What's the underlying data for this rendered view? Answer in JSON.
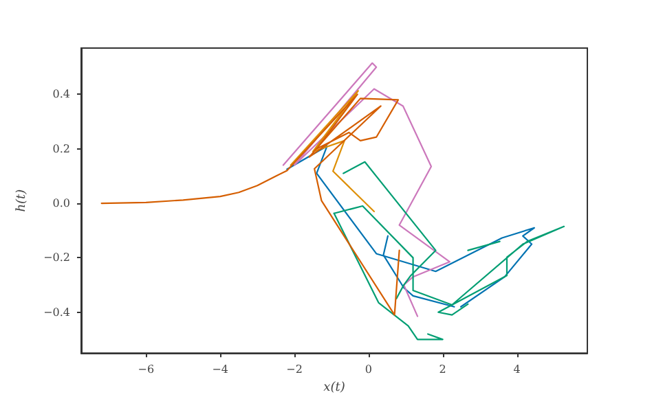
{
  "chart_data": {
    "type": "line",
    "xlabel": "x(t)",
    "ylabel": "h(t)",
    "xlim": [
      -7.75,
      5.9
    ],
    "ylim": [
      -0.55,
      0.57
    ],
    "xticks": [
      {
        "value": -6,
        "label": "−6"
      },
      {
        "value": -4,
        "label": "−4"
      },
      {
        "value": -2,
        "label": "−2"
      },
      0,
      2,
      4
    ],
    "yticks": [
      {
        "value": -0.4,
        "label": "−0.4"
      },
      {
        "value": -0.2,
        "label": "−0.2"
      },
      {
        "value": 0,
        "label": "0.0"
      },
      0.2,
      0.4
    ],
    "marker": "none",
    "line_style": "solid",
    "grid": false,
    "series": [
      {
        "color": "#0173b2",
        "x": [
          -2.2,
          -1.12,
          -1.4,
          0.21,
          1.81,
          3.6,
          4.47,
          4.16,
          4.4,
          3.67,
          2.49
        ],
        "values": [
          0.125,
          0.21,
          0.11,
          -0.185,
          -0.25,
          -0.127,
          -0.09,
          -0.12,
          -0.15,
          -0.27,
          -0.38
        ]
      },
      {
        "color": "#0173b2",
        "x": [
          0.52,
          0.4,
          0.95,
          1.2,
          2.31
        ],
        "values": [
          -0.12,
          -0.19,
          -0.31,
          -0.34,
          -0.38
        ]
      },
      {
        "color": "#cc78bc",
        "x": [
          -2.3,
          0.1,
          0.21,
          -2.0,
          0.15,
          0.93,
          1.69,
          0.83,
          2.19,
          1.2,
          0.95,
          1.32
        ],
        "values": [
          0.14,
          0.515,
          0.5,
          0.14,
          0.42,
          0.357,
          0.135,
          -0.08,
          -0.215,
          -0.27,
          -0.3,
          -0.415
        ]
      },
      {
        "color": "#029e73",
        "x": [
          -0.68,
          -0.1,
          1.81,
          1.14,
          0.95,
          0.75
        ],
        "values": [
          0.11,
          0.152,
          -0.173,
          -0.265,
          -0.3,
          -0.35
        ]
      },
      {
        "color": "#029e73",
        "x": [
          -0.93,
          -0.16,
          1.2,
          1.2,
          2.25,
          4.16,
          5.27,
          4.28,
          3.73,
          3.73,
          1.88,
          2.25,
          2.68
        ],
        "values": [
          -0.037,
          -0.01,
          -0.2,
          -0.32,
          -0.373,
          -0.15,
          -0.085,
          -0.14,
          -0.198,
          -0.265,
          -0.4,
          -0.41,
          -0.37
        ]
      },
      {
        "color": "#029e73",
        "x": [
          -0.93,
          0.27,
          1.07,
          1.32,
          2.0,
          1.6
        ],
        "values": [
          -0.037,
          -0.365,
          -0.45,
          -0.5,
          -0.5,
          -0.48
        ]
      },
      {
        "color": "#029e73",
        "x": [
          2.68,
          3.54
        ],
        "values": [
          -0.173,
          -0.14
        ]
      },
      {
        "color": "#de8f05",
        "x": [
          -2.1,
          -0.28,
          -1.5,
          -0.65,
          -0.96,
          0.15
        ],
        "values": [
          0.14,
          0.413,
          0.19,
          0.23,
          0.118,
          -0.03
        ]
      },
      {
        "color": "#d55e00",
        "x": [
          -7.2,
          -6,
          -5,
          -4,
          -3.5,
          -3,
          -2.5,
          -2.2,
          -0.3,
          -1.4,
          -0.53,
          -0.22,
          0.21,
          0.8,
          -0.22,
          -1.6,
          0.33,
          -1.46,
          -1.27,
          0.7,
          0.83
        ],
        "values": [
          0,
          0.003,
          0.012,
          0.025,
          0.04,
          0.065,
          0.1,
          0.12,
          0.4,
          0.2,
          0.26,
          0.23,
          0.243,
          0.38,
          0.385,
          0.17,
          0.357,
          0.127,
          0.01,
          -0.41,
          -0.173
        ]
      }
    ]
  }
}
